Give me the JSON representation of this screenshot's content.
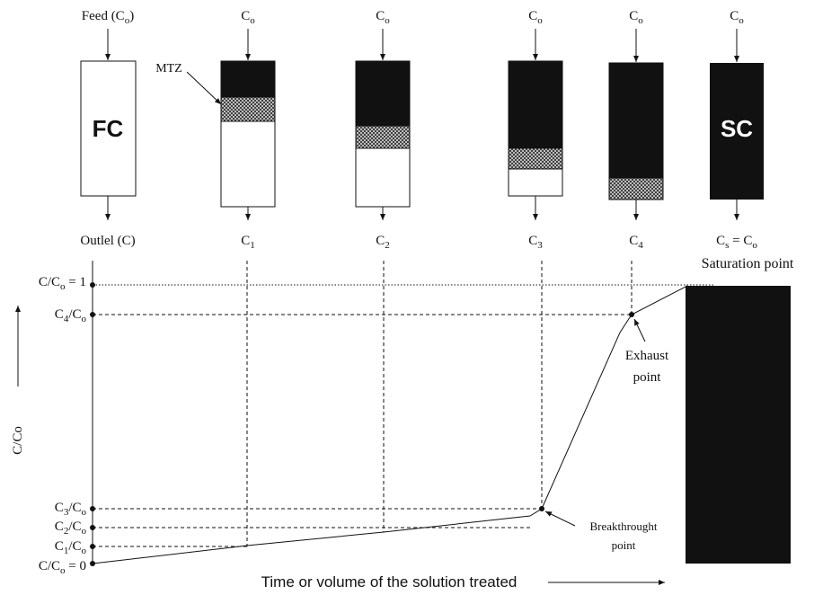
{
  "columns": {
    "inputs": [
      [
        "Feed (C",
        "o",
        ")"
      ],
      [
        "C",
        "o"
      ],
      [
        "C",
        "o"
      ],
      [
        "C",
        "o"
      ],
      [
        "C",
        "o"
      ],
      [
        "C",
        "o"
      ]
    ],
    "outputs": [
      [
        "Outlel (C)"
      ],
      [
        "C",
        "1"
      ],
      [
        "C",
        "2"
      ],
      [
        "C",
        "3"
      ],
      [
        "C",
        "4"
      ],
      [
        "C",
        "s",
        " = C",
        "o"
      ]
    ],
    "fresh_label": "FC",
    "saturated_label": "SC",
    "mtz_label": "MTZ"
  },
  "graph": {
    "y_axis_label": "C/Co",
    "x_axis_label": "Time or volume of the solution treated",
    "y_labels": [
      [
        "C/C",
        "o",
        " = 1"
      ],
      [
        "C",
        "4",
        "/C",
        "o"
      ],
      [
        "C",
        "3",
        "/C",
        "o"
      ],
      [
        "C",
        "2",
        "/C",
        "o"
      ],
      [
        "C",
        "1",
        "/C",
        "o"
      ],
      [
        "C/C",
        "o",
        " = 0"
      ]
    ],
    "annotations": {
      "saturation": "Saturation point",
      "exhaust": [
        "Exhaust",
        "point"
      ],
      "breakthrough": [
        "Breakthrought",
        "point"
      ]
    }
  }
}
